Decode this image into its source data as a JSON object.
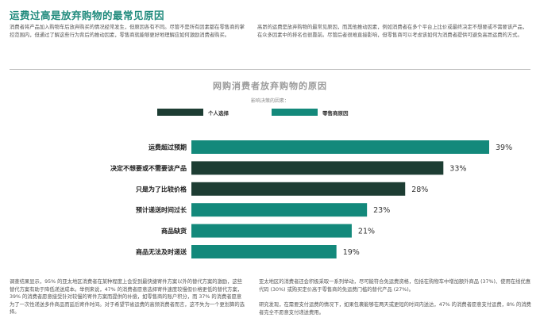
{
  "article": {
    "title": "运费过高是放弃购物的最常见原因",
    "intro_left": "消费者将产品加入购物车后放弃购买的情况经常发生，但原因各有不同。尽管不是所有因素都在零售商的掌控范围内，但通过了解这些行为背后的推动因素，零售商就能够更好地理解应如何激励消费者购买。",
    "intro_right": "高昂的运费是放弃购物的最常见原因，而其他推动因素，例如消费者在多个平台上比价或最终决定不想要或不需要该产品，在众多因素中的排名也很靠前。尽管后者很难直接影响，但零售商可以考虑该如何为消费者提供可避免高昂运费的方式。",
    "bottom_left": "调查结果显示，95% 的亚太地区消费者在某种程度上会受到最快捷寄件方案以外的替代方案的激励，这些替代方案有助于降低递送成本。举例来说，47% 的消费者愿意选择寄件速度较慢但价格更低的替代方案，39% 的消费者愿意接受针对较慢的寄件方案而提供的补偿，如零售商的账户积分，而 37% 的消费者愿意为了一次性递送多件商品而延后寄件时间。对于希望节省运费的高频消费者而言，这不失为一个更划算的选择。",
    "bottom_right_1": "亚太地区的消费者还会积极采取一系列举动，尽可能符合免运费资格，包括在购物车中增加额外商品 (37%)、使用在线优惠代码 (30%) 或购买定价高于零售商的免运费门槛的替代产品 (27%)。",
    "bottom_right_2": "研究发现，在需要支付运费的情况下，如果包裹能够在两天或更短的时间内送达，47% 的消费者愿意支付运费，8% 的消费者完全不愿意支付递送费用。"
  },
  "chart_data": {
    "type": "bar",
    "orientation": "horizontal",
    "title": "网购消费者放弃购物的原因",
    "legend_caption": "影响决策的因素：",
    "legend_placement": "top",
    "legend": [
      {
        "name": "个人选择",
        "color": "#1d3d33"
      },
      {
        "name": "零售商原因",
        "color": "#13897b"
      }
    ],
    "categories": [
      "运费超过预期",
      "决定不想要或不需要该产品",
      "只是为了比较价格",
      "预计递送时间过长",
      "商品缺货",
      "商品无法及时递送"
    ],
    "values": [
      39,
      33,
      28,
      23,
      21,
      19
    ],
    "value_labels": [
      "39%",
      "33%",
      "28%",
      "23%",
      "21%",
      "19%"
    ],
    "groups": [
      "零售商原因",
      "个人选择",
      "个人选择",
      "零售商原因",
      "零售商原因",
      "零售商原因"
    ],
    "xlim": [
      0,
      39
    ],
    "grid": false
  }
}
